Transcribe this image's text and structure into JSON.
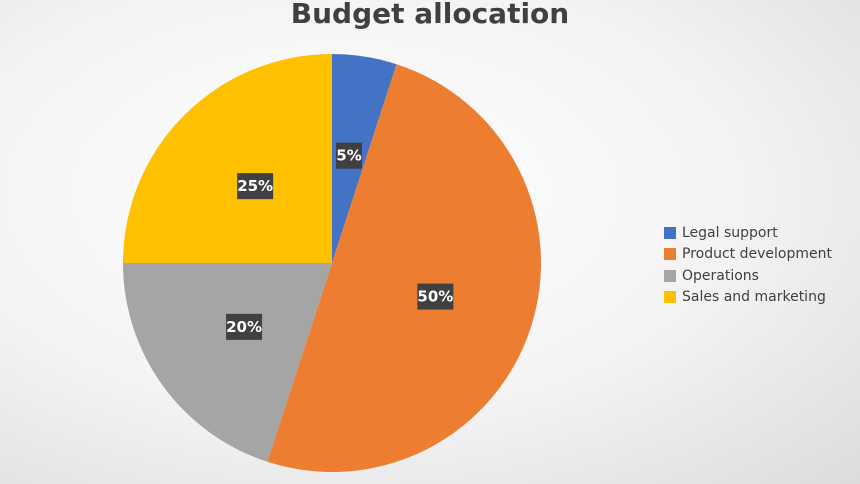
{
  "chart_data": {
    "type": "pie",
    "title": "Budget allocation",
    "categories": [
      "Legal support",
      "Product development",
      "Operations",
      "Sales and marketing"
    ],
    "values": [
      5,
      50,
      20,
      25
    ],
    "data_labels": [
      "5%",
      "50%",
      "20%",
      "25%"
    ],
    "colors": [
      "#4472C4",
      "#ED7D31",
      "#A5A5A5",
      "#FFC000"
    ],
    "legend_position": "right",
    "start_angle": "top, clockwise"
  }
}
